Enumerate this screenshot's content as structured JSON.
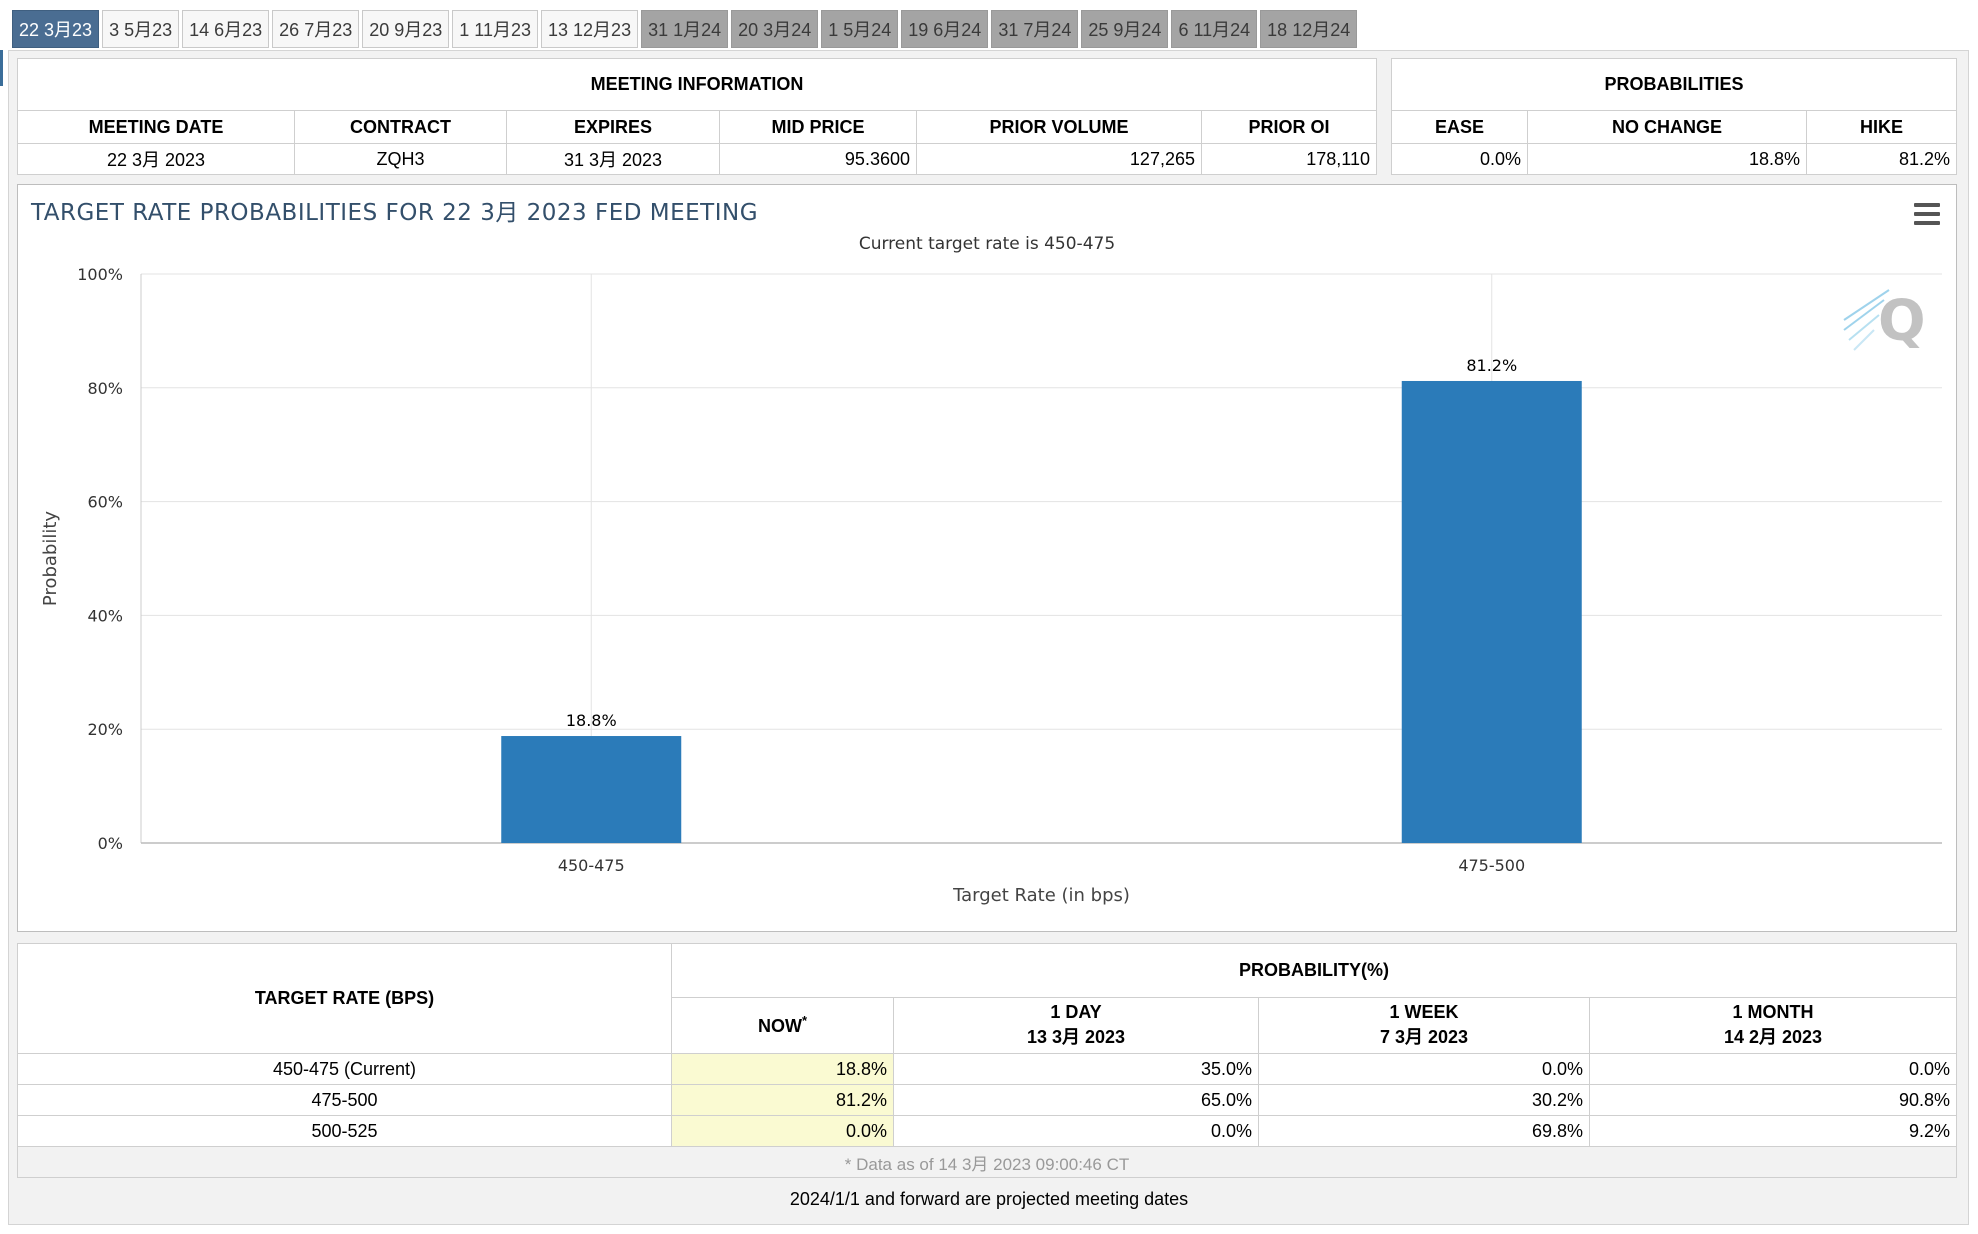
{
  "tabs": [
    {
      "label": "22 3月23",
      "state": "active"
    },
    {
      "label": "3 5月23",
      "state": "normal"
    },
    {
      "label": "14 6月23",
      "state": "normal"
    },
    {
      "label": "26 7月23",
      "state": "normal"
    },
    {
      "label": "20 9月23",
      "state": "normal"
    },
    {
      "label": "1 11月23",
      "state": "normal"
    },
    {
      "label": "13 12月23",
      "state": "normal"
    },
    {
      "label": "31 1月24",
      "state": "future"
    },
    {
      "label": "20 3月24",
      "state": "future"
    },
    {
      "label": "1 5月24",
      "state": "future"
    },
    {
      "label": "19 6月24",
      "state": "future"
    },
    {
      "label": "31 7月24",
      "state": "future"
    },
    {
      "label": "25 9月24",
      "state": "future"
    },
    {
      "label": "6 11月24",
      "state": "future"
    },
    {
      "label": "18 12月24",
      "state": "future"
    }
  ],
  "meeting_info": {
    "title": "MEETING INFORMATION",
    "headers": {
      "meeting_date": "MEETING DATE",
      "contract": "CONTRACT",
      "expires": "EXPIRES",
      "mid_price": "MID PRICE",
      "prior_volume": "PRIOR VOLUME",
      "prior_oi": "PRIOR OI"
    },
    "values": {
      "meeting_date": "22 3月 2023",
      "contract": "ZQH3",
      "expires": "31 3月 2023",
      "mid_price": "95.3600",
      "prior_volume": "127,265",
      "prior_oi": "178,110"
    }
  },
  "probabilities": {
    "title": "PROBABILITIES",
    "headers": {
      "ease": "EASE",
      "no_change": "NO CHANGE",
      "hike": "HIKE"
    },
    "values": {
      "ease": "0.0%",
      "no_change": "18.8%",
      "hike": "81.2%"
    }
  },
  "chart": {
    "menu_icon": "hamburger-menu-icon",
    "watermark_icon": "q-logo-icon"
  },
  "chart_data": {
    "type": "bar",
    "title": "TARGET RATE PROBABILITIES FOR 22 3月 2023 FED MEETING",
    "subtitle": "Current target rate is 450-475",
    "xlabel": "Target Rate (in bps)",
    "ylabel": "Probability",
    "categories": [
      "450-475",
      "475-500"
    ],
    "values": [
      18.8,
      81.2
    ],
    "data_labels": [
      "18.8%",
      "81.2%"
    ],
    "ylim": [
      0,
      100
    ],
    "yticks": [
      0,
      20,
      40,
      60,
      80,
      100
    ],
    "ytick_labels": [
      "0%",
      "20%",
      "40%",
      "60%",
      "80%",
      "100%"
    ],
    "grid": true,
    "bar_color": "#2b7bb9"
  },
  "prob_table": {
    "rate_header": "TARGET RATE (BPS)",
    "prob_header": "PROBABILITY(%)",
    "now": {
      "label": "NOW",
      "marker": "*"
    },
    "day": {
      "label": "1 DAY",
      "date": "13 3月 2023"
    },
    "week": {
      "label": "1 WEEK",
      "date": "7 3月 2023"
    },
    "month": {
      "label": "1 MONTH",
      "date": "14 2月 2023"
    },
    "rows": [
      {
        "rate": "450-475 (Current)",
        "now": "18.8%",
        "day": "35.0%",
        "week": "0.0%",
        "month": "0.0%"
      },
      {
        "rate": "475-500",
        "now": "81.2%",
        "day": "65.0%",
        "week": "30.2%",
        "month": "90.8%"
      },
      {
        "rate": "500-525",
        "now": "0.0%",
        "day": "0.0%",
        "week": "69.8%",
        "month": "9.2%"
      }
    ],
    "data_note": "* Data as of 14 3月 2023 09:00:46 CT"
  },
  "footer_note": "2024/1/1 and forward are projected meeting dates"
}
